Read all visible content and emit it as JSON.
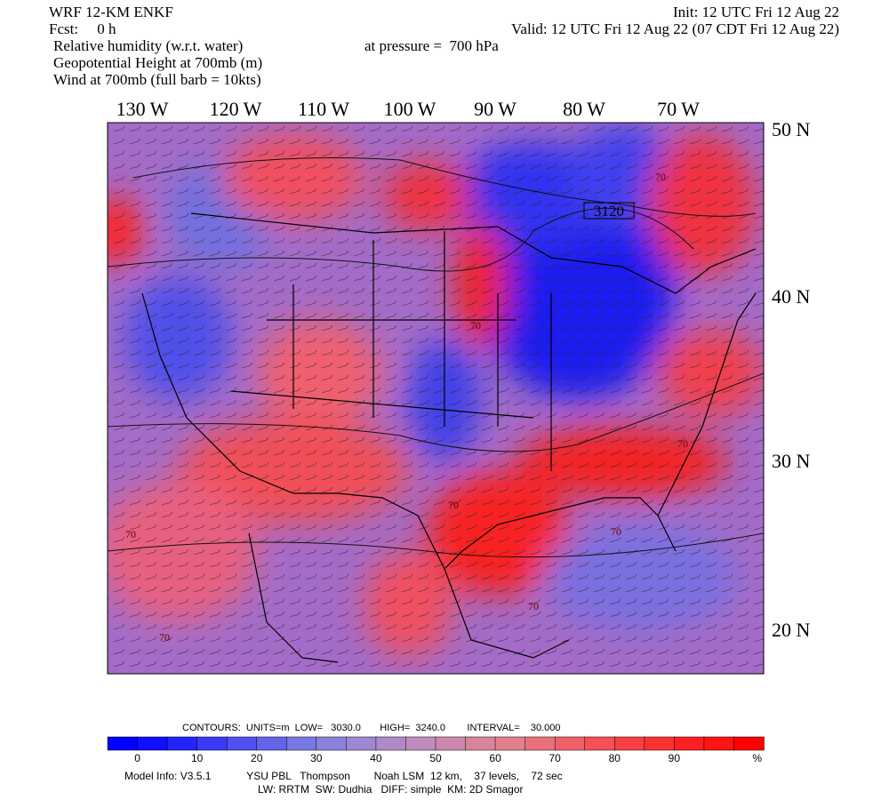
{
  "header": {
    "left": [
      "WRF 12-KM ENKF",
      "Fcst:     0 h",
      "Relative humidity (w.r.t. water)",
      "Geopotential Height at 700mb (m)",
      "Wind at 700mb (full barb = 10kts)"
    ],
    "right": [
      "Init: 12 UTC Fri 12 Aug 22",
      "Valid: 12 UTC Fri 12 Aug 22 (07 CDT Fri 12 Aug 22)",
      "at pressure =  700 hPa"
    ]
  },
  "map": {
    "longitudes": [
      "130 W",
      "120 W",
      "110 W",
      "100 W",
      "90 W",
      "80 W",
      "70 W"
    ],
    "latitudes": [
      "50 N",
      "40 N",
      "30 N",
      "20 N"
    ],
    "contour_labels": [
      "3120",
      "70",
      "70",
      "70",
      "70",
      "70",
      "70",
      "70",
      "70"
    ]
  },
  "footer": {
    "contours": "CONTOURS:  UNITS=m  LOW=   3030.0       HIGH=  3240.0        INTERVAL=    30.000",
    "colorbar": {
      "labels": [
        "0",
        "10",
        "20",
        "30",
        "40",
        "50",
        "60",
        "70",
        "80",
        "90"
      ],
      "unit": "%",
      "colors": [
        "#0000ff",
        "#1010ff",
        "#2424fa",
        "#3a3af6",
        "#5050f0",
        "#6464ea",
        "#7878e4",
        "#8c82dc",
        "#9e88d4",
        "#b08ac8",
        "#c08cbc",
        "#cc88ac",
        "#d8849c",
        "#e2808c",
        "#ea707a",
        "#f06068",
        "#f45056",
        "#f84044",
        "#fa3032",
        "#fc2022",
        "#fd1414",
        "#ff0000"
      ]
    },
    "model_info": [
      "Model Info: V3.5.1            YSU PBL   Thompson        Noah LSM  12 km,    37 levels,    72 sec",
      "LW: RRTM  SW: Dudhia   DIFF: simple  KM: 2D Smagor"
    ]
  }
}
